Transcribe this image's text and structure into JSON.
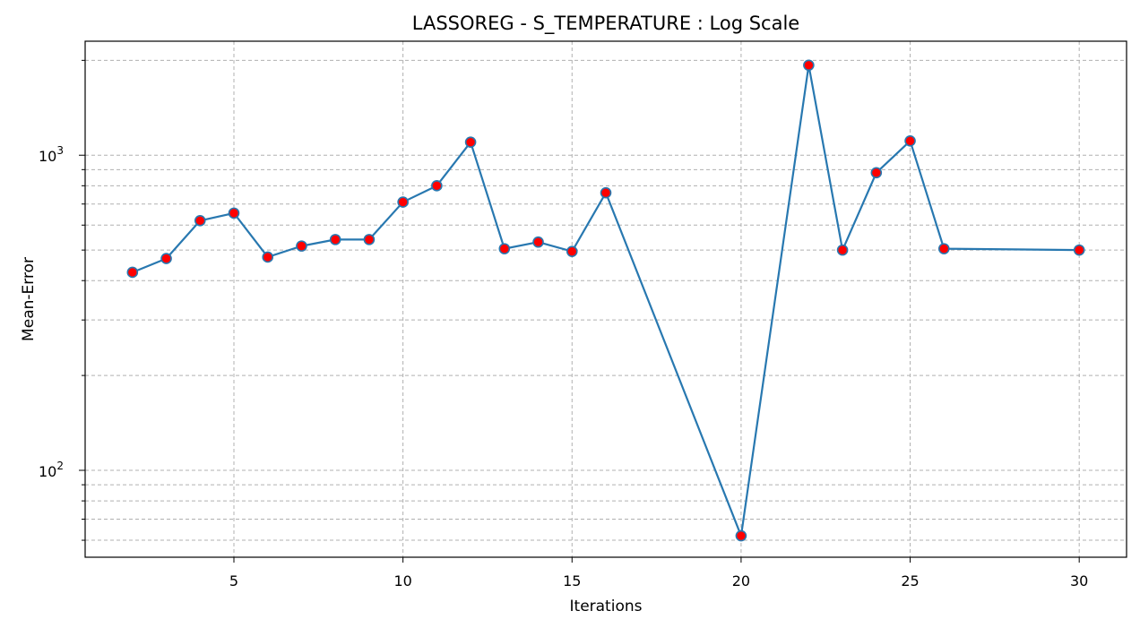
{
  "chart_data": {
    "type": "line",
    "title": "LASSOREG - S_TEMPERATURE : Log Scale",
    "xlabel": "Iterations",
    "ylabel": "Mean-Error",
    "yscale": "log",
    "xlim": [
      0.6,
      31.4
    ],
    "ylim": [
      53,
      2300
    ],
    "grid": true,
    "x_ticks": [
      5,
      10,
      15,
      20,
      25,
      30
    ],
    "y_major_ticks": [
      {
        "value": 100,
        "base": "10",
        "exp": "2"
      },
      {
        "value": 1000,
        "base": "10",
        "exp": "3"
      }
    ],
    "y_minor_ticks": [
      60,
      70,
      80,
      90,
      200,
      300,
      400,
      500,
      600,
      700,
      800,
      900,
      2000
    ],
    "series": [
      {
        "line_color": "#2878b0",
        "marker_fill": "#ff0000",
        "marker_edge": "#2878b0",
        "x": [
          2,
          3,
          4,
          5,
          6,
          7,
          8,
          9,
          10,
          11,
          12,
          13,
          14,
          15,
          16,
          20,
          22,
          23,
          24,
          25,
          26,
          30
        ],
        "y": [
          425,
          470,
          620,
          655,
          475,
          515,
          540,
          540,
          710,
          800,
          1100,
          505,
          530,
          495,
          760,
          62,
          1930,
          500,
          880,
          1110,
          505,
          500
        ]
      }
    ]
  }
}
